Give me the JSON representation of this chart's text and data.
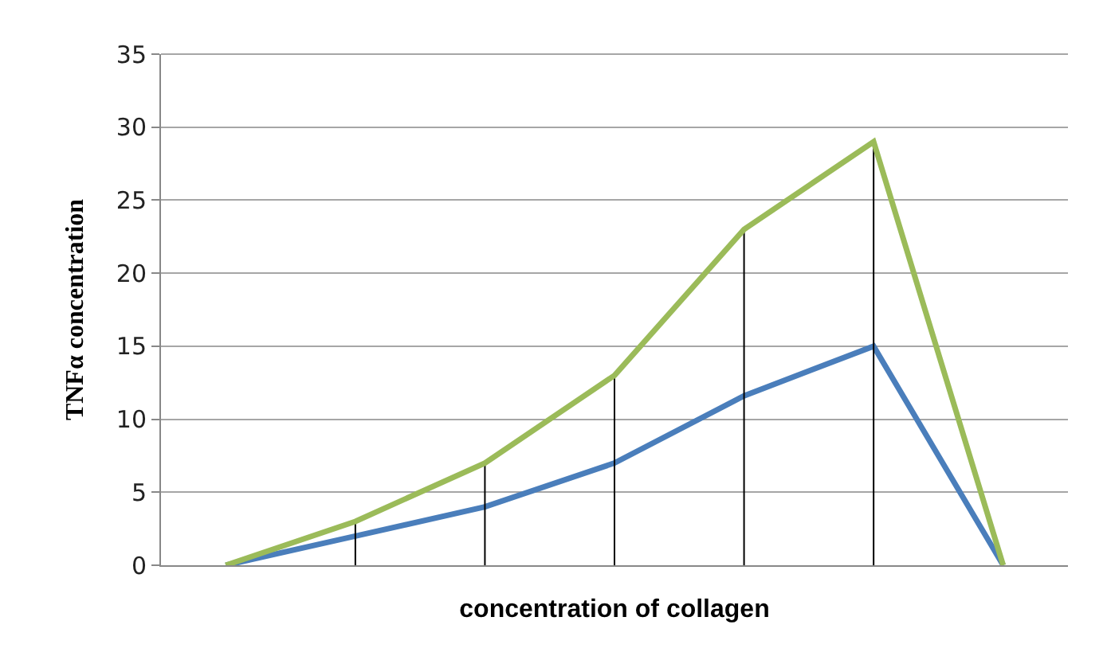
{
  "chart_data": {
    "type": "line",
    "xlabel": "concentration of collagen",
    "ylabel": "TNFα concentration",
    "categories": [
      null,
      null,
      null,
      null,
      null,
      null,
      null
    ],
    "series": [
      {
        "color": "#4a7ebb",
        "values": [
          0,
          2,
          4,
          7,
          11.6,
          15,
          0
        ]
      },
      {
        "color": "#9bbb59",
        "values": [
          0,
          3,
          7,
          13,
          23,
          29,
          0
        ],
        "errors": [
          null,
          [
            0,
            3
          ],
          [
            0,
            7
          ],
          [
            0,
            13
          ],
          [
            0,
            23
          ],
          [
            0,
            29
          ],
          null
        ]
      }
    ],
    "ylim": [
      0,
      35
    ],
    "yticks": [
      0,
      5,
      10,
      15,
      20,
      25,
      30,
      35
    ],
    "grid": "y",
    "marker": "none",
    "line_style": "solid"
  }
}
